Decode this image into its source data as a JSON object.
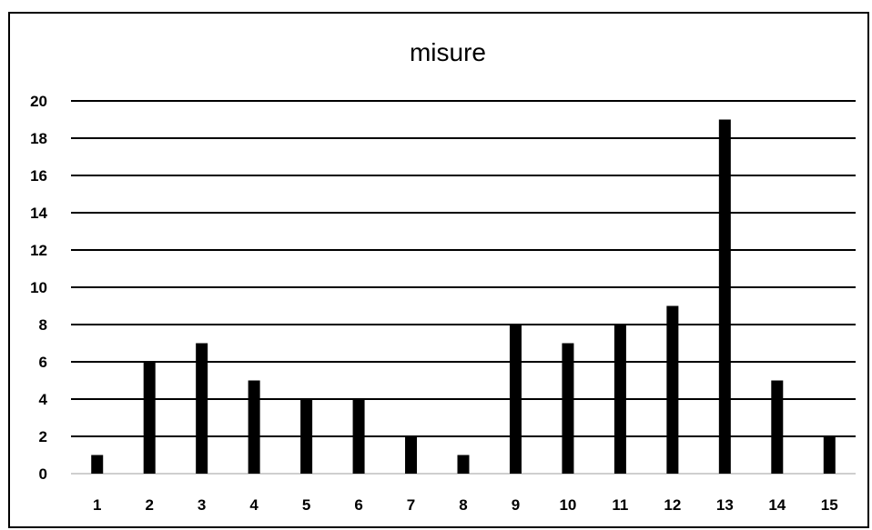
{
  "chart_data": {
    "type": "bar",
    "title": "misure",
    "xlabel": "",
    "ylabel": "",
    "categories": [
      "1",
      "2",
      "3",
      "4",
      "5",
      "6",
      "7",
      "8",
      "9",
      "10",
      "11",
      "12",
      "13",
      "14",
      "15"
    ],
    "values": [
      1,
      6,
      7,
      5,
      4,
      4,
      2,
      1,
      8,
      7,
      8,
      9,
      19,
      5,
      2
    ],
    "ylim": [
      0,
      20
    ],
    "ytick_step": 2,
    "grid": true,
    "legend": "none",
    "bar_color": "#000000",
    "grid_color": "#000000"
  }
}
